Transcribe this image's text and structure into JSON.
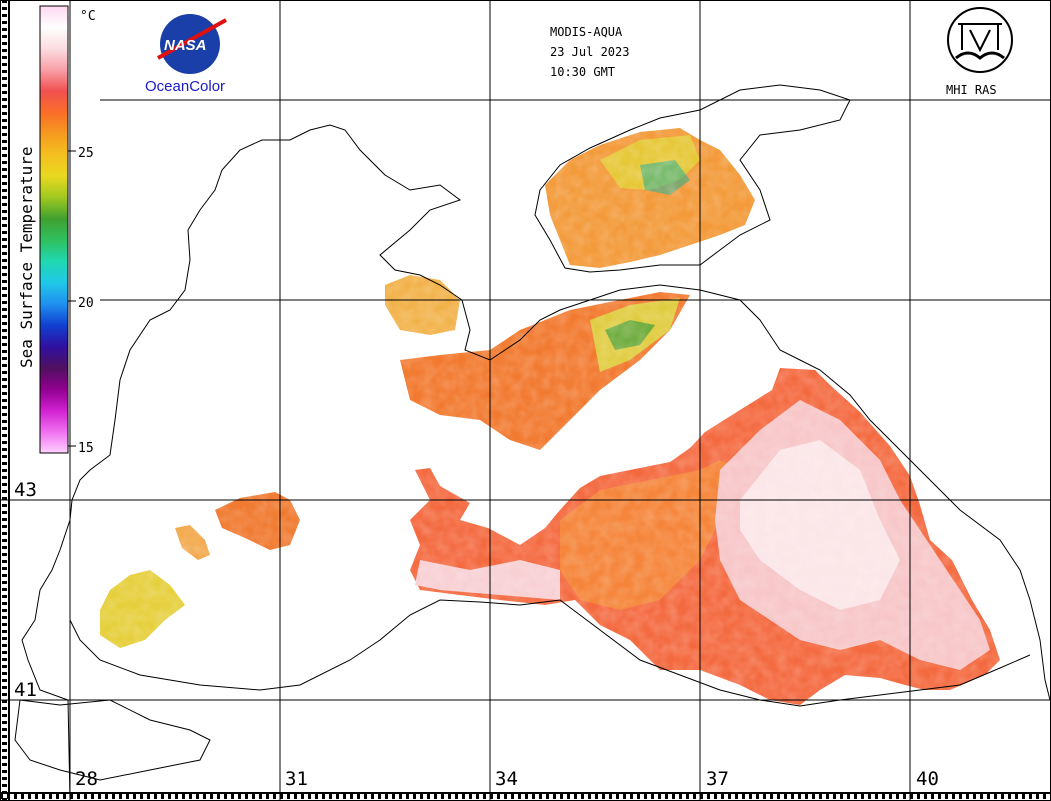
{
  "header": {
    "sensor": "MODIS-AQUA",
    "date": "23 Jul 2023",
    "time": "10:30 GMT"
  },
  "logos": {
    "nasa_text": "NASA",
    "oceancolor": "OceanColor",
    "mhi": "MHI RAS"
  },
  "colorbar": {
    "title": "Sea Surface Temperature",
    "unit": "°C",
    "ticks": [
      "25",
      "20",
      "15"
    ],
    "colors": [
      "#ffd8f0",
      "#ffffff",
      "#fbdce0",
      "#f9a0a8",
      "#f05050",
      "#fa6e28",
      "#f59a20",
      "#f5c020",
      "#e8d820",
      "#a0c820",
      "#40a030",
      "#30c060",
      "#20d8b0",
      "#20c8e8",
      "#2090f0",
      "#1040d0",
      "#3010a0",
      "#501060",
      "#900090",
      "#d020d0",
      "#f070f0",
      "#ffd0ff"
    ],
    "icons": [
      "nasa-meatball-icon",
      "mhi-ras-emblem-icon"
    ]
  },
  "axes": {
    "lon_labels": [
      "28",
      "31",
      "34",
      "37",
      "40"
    ],
    "lat_labels": [
      "43",
      "41"
    ]
  }
}
